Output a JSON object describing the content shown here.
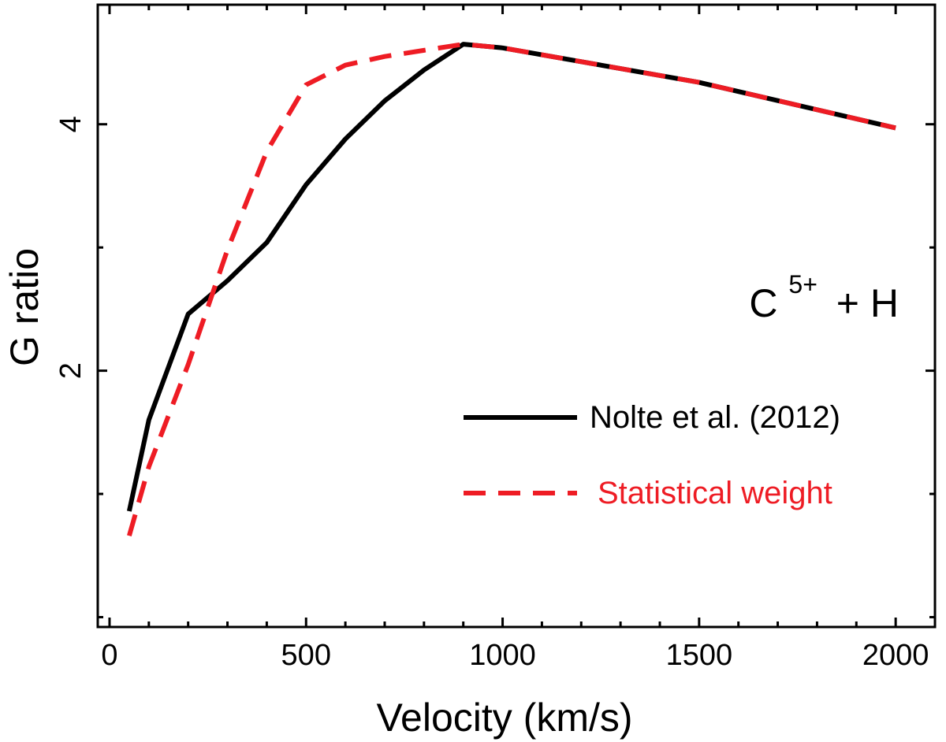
{
  "chart_data": {
    "type": "line",
    "xlabel": "Velocity (km/s)",
    "ylabel": "G ratio",
    "xlim": [
      -30,
      2100
    ],
    "ylim": [
      -0.08,
      4.97
    ],
    "x_ticks": [
      0,
      500,
      1000,
      1500,
      2000
    ],
    "x_tick_labels": [
      "0",
      "500",
      "1000",
      "1500",
      "2000"
    ],
    "x_minor_ticks": [
      100,
      200,
      300,
      400,
      600,
      700,
      800,
      900,
      1100,
      1200,
      1300,
      1400,
      1600,
      1700,
      1800,
      1900
    ],
    "y_ticks": [
      2,
      4
    ],
    "y_tick_labels": [
      "2",
      "4"
    ],
    "y_minor_ticks": [
      0,
      1,
      3
    ],
    "grid": false,
    "annotation": {
      "base": "C",
      "superscript": "5+",
      "suffix": "+ H"
    },
    "legend_position": "right",
    "series": [
      {
        "name": "Nolte et al. (2012)",
        "color": "#000000",
        "style": "solid",
        "x": [
          50,
          100,
          200,
          300,
          400,
          500,
          600,
          700,
          800,
          900,
          1000,
          1500,
          2000
        ],
        "y": [
          0.86,
          1.6,
          2.46,
          2.73,
          3.04,
          3.51,
          3.88,
          4.19,
          4.44,
          4.65,
          4.62,
          4.34,
          3.97
        ]
      },
      {
        "name": "Statistical weight",
        "color": "#ee1c24",
        "style": "dashed",
        "x": [
          50,
          100,
          200,
          300,
          400,
          500,
          600,
          700,
          800,
          900,
          1000,
          1500,
          2000
        ],
        "y": [
          0.66,
          1.22,
          2.05,
          2.98,
          3.78,
          4.32,
          4.48,
          4.55,
          4.6,
          4.65,
          4.62,
          4.34,
          3.97
        ]
      }
    ]
  }
}
